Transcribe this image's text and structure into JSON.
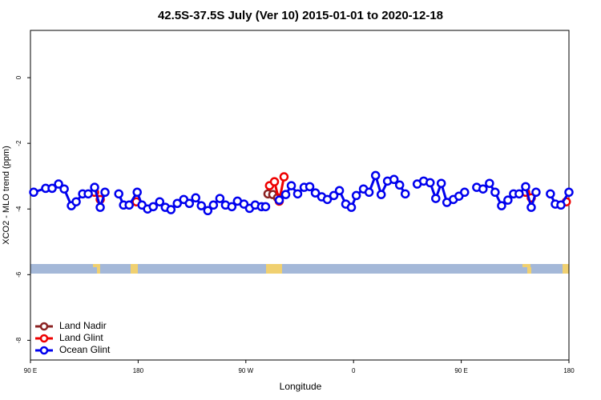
{
  "chart_data": {
    "type": "line",
    "title": "42.5S-37.5S July (Ver 10)   2015-01-01 to 2020-12-18",
    "x_label": "Longitude",
    "y_label": "XCO2 - MLO trend (ppm)",
    "xlim": [
      90,
      540
    ],
    "ylim": [
      -8.6,
      1.44
    ],
    "xticks": [
      {
        "value": 90,
        "label": "90 E"
      },
      180,
      {
        "value": 270,
        "label": "90 W"
      },
      {
        "value": 360,
        "label": "0"
      },
      {
        "value": 450,
        "label": "90 E"
      },
      {
        "value": 540,
        "label": "180"
      }
    ],
    "yticks": [
      0,
      -2,
      -4,
      -6,
      -8
    ],
    "legend": "bottom-left",
    "series": [
      {
        "name": "Land Nadir",
        "color": "#8b2323",
        "x": [
          288.5,
          292.5,
          296.5
        ],
        "values": [
          -3.54,
          -3.56,
          -3.66
        ]
      },
      {
        "name": "Land Glint",
        "color": "#ee0000",
        "x": [
          143.6,
          148.3,
          150,
          178.5,
          240,
          289.8,
          293.9,
          297.9,
          301.9,
          400,
          503.8,
          508.5,
          520,
          537.8
        ],
        "values": [
          -3.49,
          -3.71,
          null,
          -3.78,
          null,
          -3.29,
          -3.17,
          -3.76,
          -3.02,
          null,
          -3.49,
          -3.66,
          null,
          -3.78
        ]
      },
      {
        "name": "Ocean Glint",
        "color": "#0000ee",
        "x": [
          92.7,
          102.7,
          108.1,
          113.5,
          118.2,
          124.2,
          128.2,
          133.6,
          138.3,
          143.6,
          148.3,
          152.3,
          158.4,
          163.8,
          167.8,
          172.5,
          179.2,
          183.2,
          187.9,
          192.6,
          198.0,
          202.7,
          207.4,
          212.7,
          218.1,
          222.8,
          228.1,
          232.8,
          238.2,
          242.9,
          248.3,
          253.0,
          258.3,
          263.0,
          268.4,
          273.1,
          277.8,
          283.1,
          286.5,
          290,
          297.9,
          303.3,
          308.0,
          313.3,
          318.7,
          323.4,
          328.1,
          333.4,
          338.1,
          343.5,
          348.2,
          353.5,
          358.2,
          362.3,
          368.3,
          373.0,
          378.4,
          383.1,
          388.4,
          393.8,
          398.5,
          403.2,
          406.5,
          413.2,
          418.6,
          424.0,
          428.7,
          433.3,
          438.0,
          443.4,
          448.1,
          452.8,
          457.5,
          462.9,
          468.2,
          473.6,
          478.3,
          483.7,
          489.0,
          493.7,
          498.4,
          503.8,
          508.5,
          512.5,
          518.5,
          524.5,
          528.6,
          533.3,
          540
        ],
        "values": [
          -3.49,
          -3.37,
          -3.37,
          -3.24,
          -3.39,
          -3.9,
          -3.78,
          -3.54,
          -3.54,
          -3.34,
          -3.95,
          -3.49,
          null,
          -3.54,
          -3.88,
          -3.88,
          -3.49,
          -3.88,
          -4.0,
          -3.93,
          -3.78,
          -3.95,
          -4.02,
          -3.83,
          -3.71,
          -3.83,
          -3.66,
          -3.9,
          -4.05,
          -3.88,
          -3.68,
          -3.88,
          -3.93,
          -3.76,
          -3.85,
          -3.98,
          -3.88,
          -3.93,
          -3.93,
          null,
          -3.73,
          -3.56,
          -3.29,
          -3.54,
          -3.34,
          -3.32,
          -3.51,
          -3.63,
          -3.71,
          -3.59,
          -3.44,
          -3.85,
          -3.95,
          -3.59,
          -3.39,
          -3.49,
          -2.98,
          -3.56,
          -3.15,
          -3.1,
          -3.27,
          -3.54,
          null,
          -3.24,
          -3.15,
          -3.2,
          -3.68,
          -3.22,
          -3.8,
          -3.71,
          -3.61,
          -3.49,
          null,
          -3.34,
          -3.39,
          -3.22,
          -3.49,
          -3.9,
          -3.73,
          -3.54,
          -3.54,
          -3.32,
          -3.95,
          -3.49,
          null,
          -3.54,
          -3.85,
          -3.88,
          -3.49
        ]
      }
    ]
  }
}
